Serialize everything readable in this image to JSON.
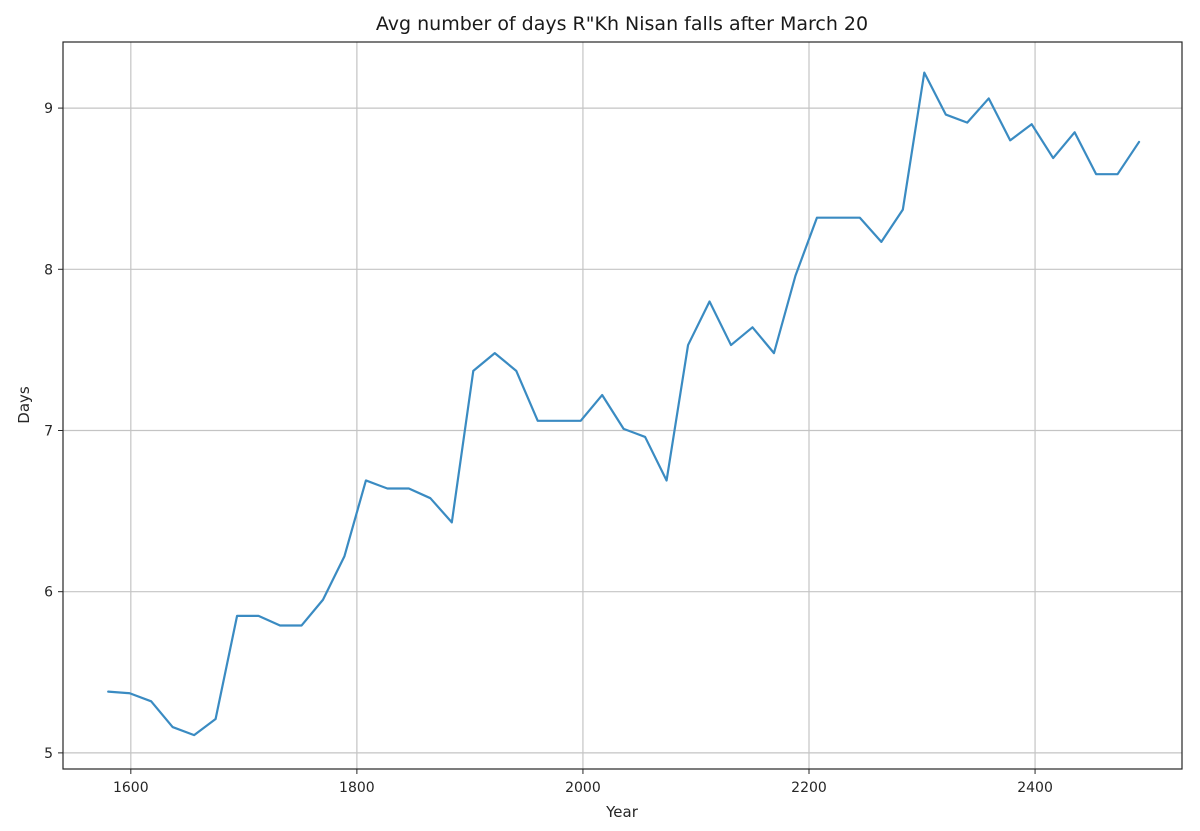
{
  "chart_data": {
    "type": "line",
    "title": "Avg number of days R\"Kh Nisan falls after March 20",
    "xlabel": "Year",
    "ylabel": "Days",
    "xlim": [
      1540,
      2530
    ],
    "ylim": [
      4.9,
      9.41
    ],
    "xticks": [
      1600,
      1800,
      2000,
      2200,
      2400
    ],
    "yticks": [
      5,
      6,
      7,
      8,
      9
    ],
    "grid": true,
    "series": [
      {
        "color": "#3a8bc2",
        "x": [
          1580,
          1599,
          1618,
          1637,
          1656,
          1675,
          1694,
          1713,
          1732,
          1751,
          1770,
          1789,
          1808,
          1827,
          1846,
          1865,
          1884,
          1903,
          1922,
          1941,
          1960,
          1979,
          1998,
          2017,
          2036,
          2055,
          2074,
          2093,
          2112,
          2131,
          2150,
          2169,
          2188,
          2207,
          2226,
          2245,
          2264,
          2283,
          2302,
          2321,
          2340,
          2359,
          2378,
          2397,
          2416,
          2435,
          2454,
          2473,
          2492
        ],
        "y": [
          5.38,
          5.37,
          5.32,
          5.16,
          5.11,
          5.21,
          5.85,
          5.85,
          5.79,
          5.79,
          5.95,
          6.22,
          6.69,
          6.64,
          6.64,
          6.58,
          6.43,
          7.37,
          7.48,
          7.37,
          7.06,
          7.06,
          7.06,
          7.22,
          7.01,
          6.96,
          6.69,
          7.53,
          7.8,
          7.53,
          7.64,
          7.48,
          7.96,
          8.32,
          8.32,
          8.32,
          8.17,
          8.37,
          9.22,
          8.96,
          8.91,
          9.06,
          8.8,
          8.9,
          8.69,
          8.85,
          8.59,
          8.59,
          8.79
        ]
      }
    ]
  }
}
